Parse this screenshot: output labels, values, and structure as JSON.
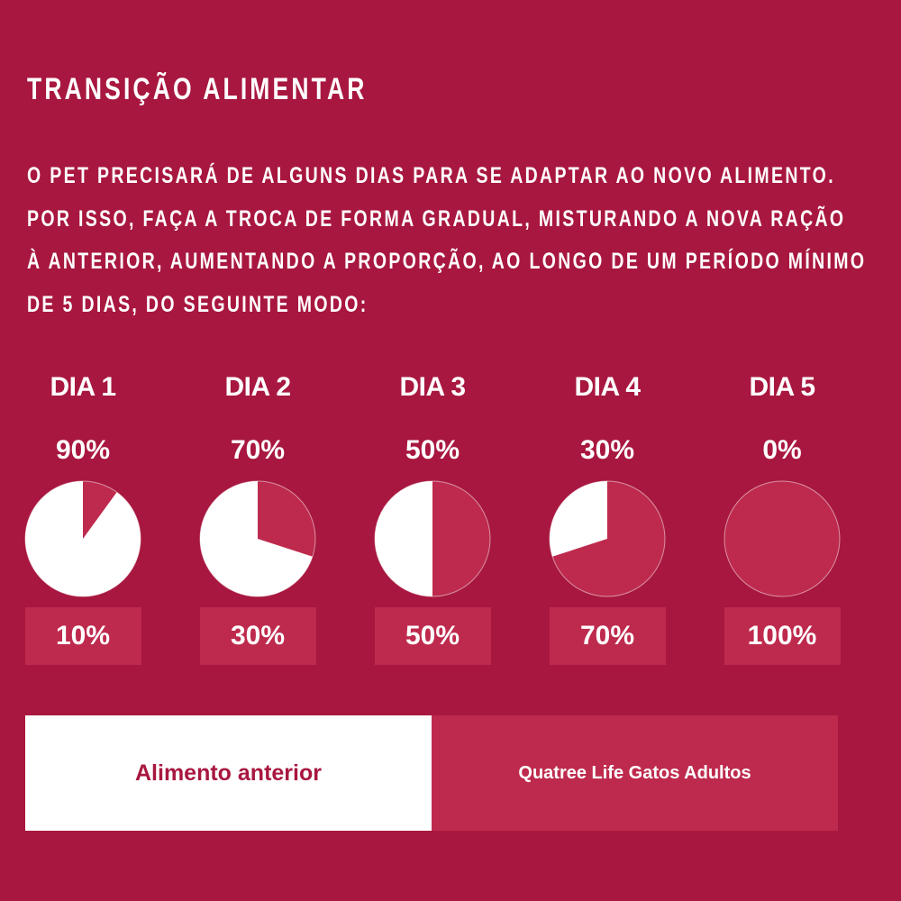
{
  "title": "TRANSIÇÃO ALIMENTAR",
  "intro_lines": [
    "O PET PRECISARÁ DE ALGUNS DIAS PARA SE ADAPTAR AO NOVO ALIMENTO.",
    "POR ISSO, FAÇA A TROCA DE FORMA GRADUAL, MISTURANDO A NOVA RAÇÃO",
    "À ANTERIOR, AUMENTANDO A PROPORÇÃO, AO LONGO DE UM PERÍODO MÍNIMO",
    "DE 5 DIAS, DO SEGUINTE MODO:"
  ],
  "colors": {
    "background": "#A8173F",
    "new_food": "#BE2A4D",
    "previous_food": "#FFFFFF"
  },
  "chart_data": {
    "type": "pie",
    "categories": [
      "DIA 1",
      "DIA 2",
      "DIA 3",
      "DIA 4",
      "DIA 5"
    ],
    "series": [
      {
        "name": "Alimento anterior",
        "values": [
          90,
          70,
          50,
          30,
          0
        ],
        "labels": [
          "90%",
          "70%",
          "50%",
          "30%",
          "0%"
        ]
      },
      {
        "name": "Quatree Life Gatos Adultos",
        "values": [
          10,
          30,
          50,
          70,
          100
        ],
        "labels": [
          "10%",
          "30%",
          "50%",
          "70%",
          "100%"
        ]
      }
    ]
  },
  "legend": {
    "previous": "Alimento anterior",
    "new": "Quatree Life Gatos Adultos"
  }
}
